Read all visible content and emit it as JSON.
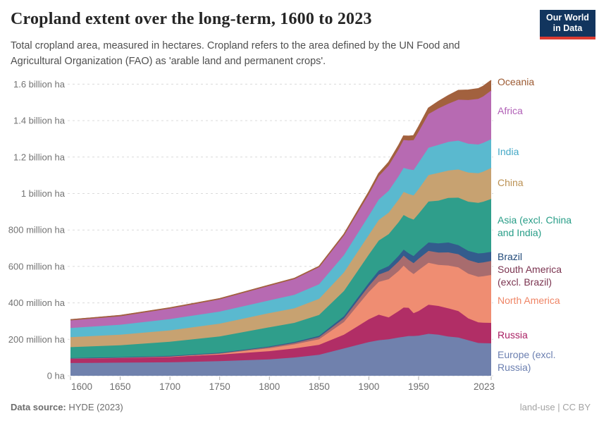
{
  "header": {
    "title": "Cropland extent over the long-term, 1600 to 2023",
    "subtitle": "Total cropland area, measured in hectares. Cropland refers to the area defined by the UN Food and Agricultural Organization (FAO) as 'arable land and permanent crops'.",
    "logo": {
      "line1": "Our World",
      "line2": "in Data"
    }
  },
  "footer": {
    "source_label": "Data source:",
    "source_value": "HYDE (2023)",
    "right": "land-use | CC BY"
  },
  "chart_data": {
    "type": "area",
    "stacked": true,
    "title": "Cropland extent over the long-term, 1600 to 2023",
    "unit": "million hectares",
    "grid": "dashed-horizontal",
    "legend_position": "right-edge-labels",
    "xlim": [
      1600,
      2023
    ],
    "ylim": [
      0,
      1600
    ],
    "x": [
      1600,
      1650,
      1700,
      1750,
      1800,
      1825,
      1850,
      1875,
      1900,
      1910,
      1920,
      1930,
      1935,
      1940,
      1945,
      1950,
      1960,
      1970,
      1980,
      1990,
      2000,
      2010,
      2015,
      2023
    ],
    "x_ticks": [
      1600,
      1650,
      1700,
      1750,
      1800,
      1850,
      1900,
      1950,
      2023
    ],
    "y_ticks": [
      {
        "v": 0,
        "label": "0 ha"
      },
      {
        "v": 200,
        "label": "200 million ha"
      },
      {
        "v": 400,
        "label": "400 million ha"
      },
      {
        "v": 600,
        "label": "600 million ha"
      },
      {
        "v": 800,
        "label": "800 million ha"
      },
      {
        "v": 1000,
        "label": "1 billion ha"
      },
      {
        "v": 1200,
        "label": "1.2 billion ha"
      },
      {
        "v": 1400,
        "label": "1.4 billion ha"
      },
      {
        "v": 1600,
        "label": "1.6 billion ha"
      }
    ],
    "series": [
      {
        "name": "Europe (excl. Russia)",
        "color": "#7081ad",
        "values": [
          70,
          72,
          74,
          80,
          90,
          100,
          115,
          150,
          185,
          195,
          200,
          210,
          214,
          218,
          218,
          220,
          230,
          225,
          215,
          210,
          195,
          180,
          179,
          178
        ]
      },
      {
        "name": "Russia",
        "color": "#b12e66",
        "values": [
          25,
          27,
          30,
          36,
          45,
          50,
          55,
          75,
          125,
          140,
          120,
          145,
          160,
          155,
          125,
          135,
          160,
          158,
          155,
          145,
          120,
          113,
          112,
          112
        ]
      },
      {
        "name": "North America",
        "color": "#ef8d72",
        "values": [
          1,
          1,
          2,
          5,
          16,
          22,
          30,
          70,
          150,
          180,
          210,
          220,
          230,
          205,
          215,
          225,
          230,
          225,
          235,
          240,
          245,
          250,
          255,
          263
        ]
      },
      {
        "name": "South America (excl. Brazil)",
        "color": "#a86c6e",
        "values": [
          1,
          1,
          2,
          3,
          6,
          8,
          12,
          20,
          32,
          40,
          46,
          52,
          55,
          58,
          60,
          62,
          65,
          68,
          72,
          72,
          75,
          76,
          76,
          77
        ]
      },
      {
        "name": "Brazil",
        "color": "#335c8d",
        "values": [
          0,
          1,
          1,
          2,
          4,
          5,
          7,
          12,
          18,
          22,
          26,
          31,
          33,
          36,
          39,
          42,
          46,
          50,
          54,
          50,
          50,
          52,
          51,
          50
        ]
      },
      {
        "name": "Asia (excl. China and India)",
        "color": "#2f9e8b",
        "values": [
          60,
          65,
          78,
          90,
          105,
          105,
          115,
          138,
          155,
          165,
          175,
          185,
          190,
          195,
          200,
          205,
          225,
          235,
          245,
          260,
          270,
          278,
          282,
          290
        ]
      },
      {
        "name": "China",
        "color": "#c7a271",
        "values": [
          55,
          58,
          62,
          70,
          78,
          80,
          88,
          102,
          108,
          113,
          118,
          124,
          127,
          130,
          132,
          135,
          145,
          152,
          150,
          155,
          160,
          162,
          165,
          170
        ]
      },
      {
        "name": "India",
        "color": "#5ab9cf",
        "values": [
          50,
          55,
          62,
          66,
          70,
          74,
          80,
          95,
          105,
          112,
          120,
          128,
          132,
          136,
          140,
          145,
          150,
          154,
          157,
          158,
          158,
          158,
          158,
          158
        ]
      },
      {
        "name": "Africa",
        "color": "#b76ab2",
        "values": [
          45,
          50,
          60,
          70,
          82,
          88,
          95,
          108,
          118,
          128,
          138,
          148,
          153,
          158,
          164,
          170,
          185,
          200,
          210,
          225,
          240,
          250,
          255,
          267
        ]
      },
      {
        "name": "Oceania",
        "color": "#a2613e",
        "values": [
          0,
          0,
          1,
          1,
          1,
          2,
          3,
          6,
          12,
          15,
          18,
          20,
          21,
          23,
          24,
          26,
          32,
          38,
          44,
          50,
          54,
          56,
          55,
          55
        ]
      }
    ],
    "legend": [
      {
        "text": "Oceania",
        "color": "#9c5a32",
        "y": 107
      },
      {
        "text": "Africa",
        "color": "#b05fb6",
        "y": 148
      },
      {
        "text": "India",
        "color": "#44a8c6",
        "y": 206
      },
      {
        "text": "China",
        "color": "#bb9153",
        "y": 250
      },
      {
        "text": "Asia (excl. China\nand India)",
        "color": "#279d87",
        "y": 303
      },
      {
        "text": "Brazil",
        "color": "#1e4777",
        "y": 355
      },
      {
        "text": "South America\n(excl. Brazil)",
        "color": "#7b3450",
        "y": 373
      },
      {
        "text": "North America",
        "color": "#ef8566",
        "y": 417
      },
      {
        "text": "Russia",
        "color": "#a91e62",
        "y": 466
      },
      {
        "text": "Europe (excl.\nRussia)",
        "color": "#6b7fb0",
        "y": 494
      }
    ]
  }
}
